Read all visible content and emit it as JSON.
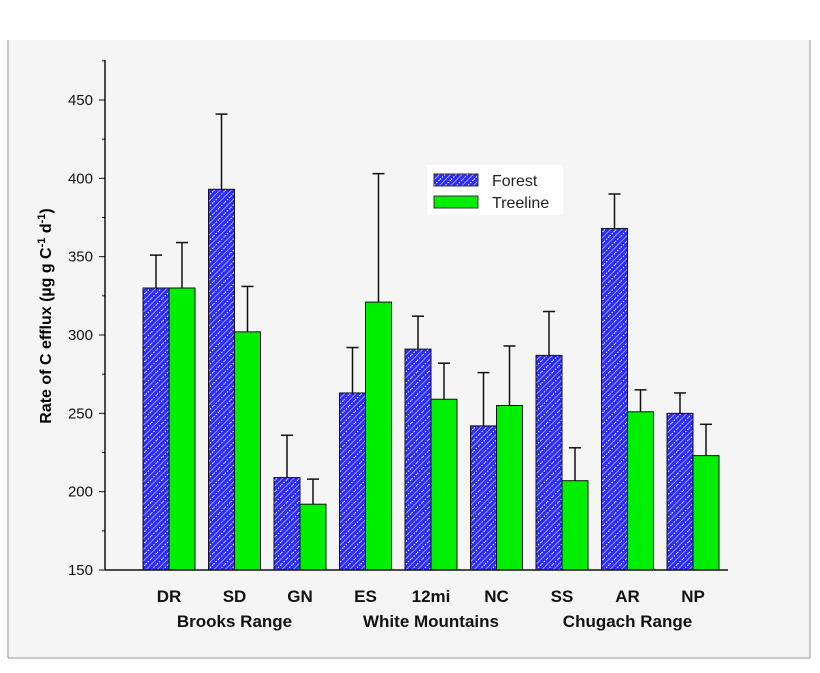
{
  "chart_data": {
    "type": "bar",
    "ylabel": "Rate of C efflux (µg g C-1 d-1)",
    "ylabel_parts": {
      "main": "Rate of C efflux (µg g C",
      "sup1": "-1",
      "mid": " d",
      "sup2": "-1",
      "end": ")"
    },
    "ylim": [
      150,
      450
    ],
    "yticks": [
      "150",
      "200",
      "250",
      "300",
      "350",
      "400",
      "450"
    ],
    "categories": [
      "DR",
      "SD",
      "GN",
      "ES",
      "12mi",
      "NC",
      "SS",
      "AR",
      "NP"
    ],
    "groups": [
      {
        "label": "Brooks Range",
        "from": 0,
        "to": 2
      },
      {
        "label": "White Mountains",
        "from": 3,
        "to": 5
      },
      {
        "label": "Chugach Range",
        "from": 6,
        "to": 8
      }
    ],
    "legend": {
      "position": "top-right"
    },
    "series": [
      {
        "name": "Forest",
        "color": "#2b2bff",
        "values": [
          330,
          393,
          209,
          263,
          291,
          242,
          287,
          368,
          250
        ],
        "error_upper": [
          351,
          441,
          236,
          292,
          312,
          276,
          315,
          390,
          263
        ]
      },
      {
        "name": "Treeline",
        "color": "#00ee00",
        "values": [
          330,
          302,
          192,
          321,
          259,
          255,
          207,
          251,
          223
        ],
        "error_upper": [
          359,
          331,
          208,
          403,
          282,
          293,
          228,
          265,
          243
        ]
      }
    ]
  }
}
